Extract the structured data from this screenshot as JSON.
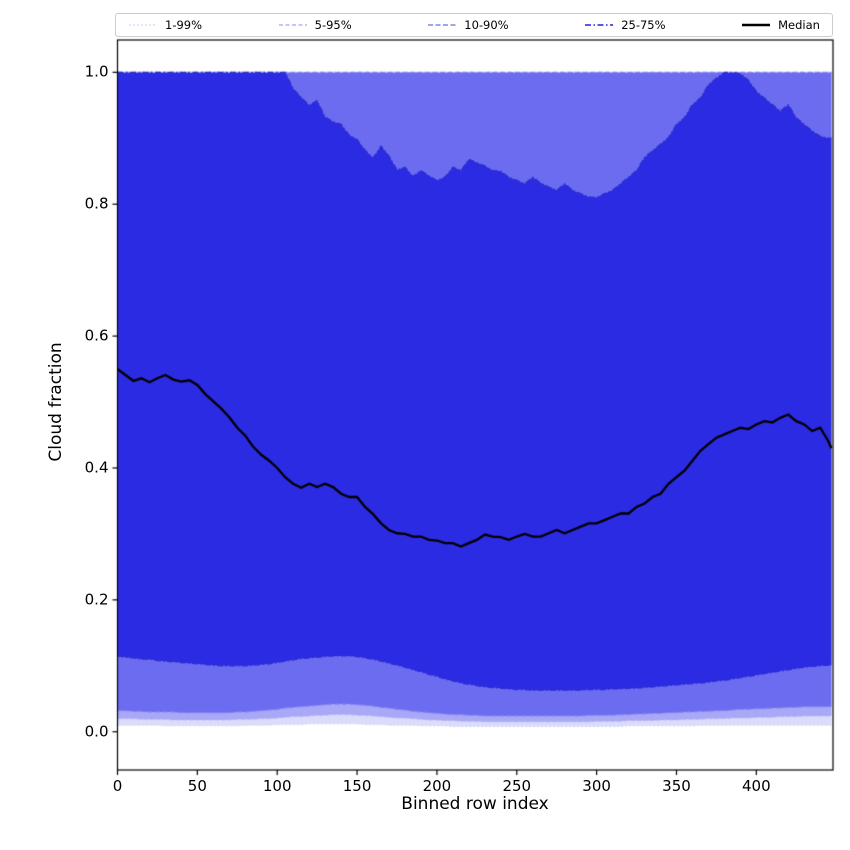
{
  "figure": {
    "background": "#ffffff"
  },
  "chart_data": {
    "type": "area",
    "title": "",
    "xlabel": "Binned row index",
    "ylabel": "Cloud fraction",
    "legend_position": "top",
    "grid": false,
    "xlim": [
      0,
      448
    ],
    "ylim": [
      -0.058,
      1.049
    ],
    "xtick_values": [
      0,
      50,
      100,
      150,
      200,
      250,
      300,
      350,
      400
    ],
    "xtick_labels": [
      "0",
      "50",
      "100",
      "150",
      "200",
      "250",
      "300",
      "350",
      "400"
    ],
    "ytick_values": [
      0.0,
      0.2,
      0.4,
      0.6,
      0.8,
      1.0
    ],
    "ytick_labels": [
      "0.0",
      "0.2",
      "0.4",
      "0.6",
      "0.8",
      "1.0"
    ],
    "x": [
      0,
      5,
      10,
      15,
      20,
      25,
      30,
      35,
      40,
      45,
      50,
      55,
      60,
      65,
      70,
      75,
      80,
      85,
      90,
      95,
      100,
      105,
      110,
      115,
      120,
      125,
      130,
      135,
      140,
      145,
      150,
      155,
      160,
      165,
      170,
      175,
      180,
      185,
      190,
      195,
      200,
      205,
      210,
      215,
      220,
      225,
      230,
      235,
      240,
      245,
      250,
      255,
      260,
      265,
      270,
      275,
      280,
      285,
      290,
      295,
      300,
      305,
      310,
      315,
      320,
      325,
      330,
      335,
      340,
      345,
      350,
      355,
      360,
      365,
      370,
      375,
      380,
      385,
      390,
      395,
      400,
      405,
      410,
      415,
      420,
      425,
      430,
      435,
      440,
      445,
      447
    ],
    "percentiles": {
      "p1": [
        0.01,
        0.01,
        0.01,
        0.01,
        0.01,
        0.01,
        0.009,
        0.009,
        0.009,
        0.009,
        0.009,
        0.009,
        0.009,
        0.009,
        0.009,
        0.009,
        0.01,
        0.01,
        0.01,
        0.01,
        0.011,
        0.011,
        0.011,
        0.011,
        0.012,
        0.012,
        0.012,
        0.012,
        0.012,
        0.012,
        0.012,
        0.011,
        0.011,
        0.011,
        0.01,
        0.01,
        0.01,
        0.01,
        0.009,
        0.009,
        0.009,
        0.009,
        0.008,
        0.008,
        0.008,
        0.008,
        0.008,
        0.008,
        0.008,
        0.008,
        0.008,
        0.008,
        0.008,
        0.008,
        0.008,
        0.008,
        0.008,
        0.008,
        0.008,
        0.008,
        0.008,
        0.008,
        0.008,
        0.008,
        0.009,
        0.009,
        0.009,
        0.009,
        0.009,
        0.009,
        0.009,
        0.009,
        0.009,
        0.01,
        0.01,
        0.01,
        0.01,
        0.01,
        0.01,
        0.01,
        0.01,
        0.01,
        0.01,
        0.01,
        0.01,
        0.01,
        0.01,
        0.01,
        0.01,
        0.01,
        0.01
      ],
      "p5": [
        0.02,
        0.02,
        0.02,
        0.019,
        0.019,
        0.019,
        0.019,
        0.018,
        0.018,
        0.018,
        0.018,
        0.018,
        0.018,
        0.018,
        0.018,
        0.019,
        0.019,
        0.019,
        0.02,
        0.02,
        0.021,
        0.022,
        0.023,
        0.023,
        0.024,
        0.025,
        0.025,
        0.026,
        0.026,
        0.026,
        0.025,
        0.025,
        0.024,
        0.023,
        0.022,
        0.021,
        0.021,
        0.02,
        0.019,
        0.018,
        0.018,
        0.017,
        0.017,
        0.016,
        0.016,
        0.016,
        0.015,
        0.015,
        0.015,
        0.015,
        0.015,
        0.015,
        0.015,
        0.015,
        0.015,
        0.015,
        0.015,
        0.015,
        0.015,
        0.015,
        0.016,
        0.016,
        0.016,
        0.016,
        0.017,
        0.017,
        0.017,
        0.017,
        0.018,
        0.018,
        0.018,
        0.019,
        0.019,
        0.019,
        0.02,
        0.02,
        0.02,
        0.021,
        0.021,
        0.021,
        0.022,
        0.022,
        0.022,
        0.023,
        0.023,
        0.023,
        0.024,
        0.024,
        0.024,
        0.024,
        0.024
      ],
      "p10": [
        0.032,
        0.032,
        0.031,
        0.031,
        0.03,
        0.03,
        0.03,
        0.03,
        0.029,
        0.029,
        0.029,
        0.029,
        0.029,
        0.029,
        0.029,
        0.03,
        0.03,
        0.031,
        0.032,
        0.033,
        0.034,
        0.036,
        0.037,
        0.038,
        0.039,
        0.04,
        0.041,
        0.042,
        0.042,
        0.042,
        0.041,
        0.04,
        0.039,
        0.037,
        0.036,
        0.034,
        0.033,
        0.031,
        0.03,
        0.029,
        0.028,
        0.027,
        0.026,
        0.026,
        0.025,
        0.025,
        0.024,
        0.024,
        0.024,
        0.024,
        0.024,
        0.024,
        0.024,
        0.024,
        0.024,
        0.024,
        0.024,
        0.024,
        0.024,
        0.025,
        0.025,
        0.025,
        0.025,
        0.026,
        0.026,
        0.027,
        0.027,
        0.028,
        0.028,
        0.029,
        0.029,
        0.03,
        0.03,
        0.031,
        0.031,
        0.032,
        0.032,
        0.033,
        0.034,
        0.034,
        0.035,
        0.035,
        0.036,
        0.036,
        0.037,
        0.037,
        0.038,
        0.038,
        0.038,
        0.038,
        0.038
      ],
      "p25": [
        0.115,
        0.113,
        0.112,
        0.11,
        0.11,
        0.108,
        0.107,
        0.106,
        0.105,
        0.104,
        0.103,
        0.102,
        0.101,
        0.1,
        0.1,
        0.1,
        0.1,
        0.101,
        0.102,
        0.103,
        0.105,
        0.107,
        0.109,
        0.111,
        0.112,
        0.113,
        0.114,
        0.115,
        0.115,
        0.115,
        0.114,
        0.112,
        0.11,
        0.107,
        0.104,
        0.101,
        0.098,
        0.094,
        0.091,
        0.087,
        0.084,
        0.08,
        0.077,
        0.074,
        0.072,
        0.07,
        0.068,
        0.067,
        0.066,
        0.065,
        0.064,
        0.064,
        0.063,
        0.063,
        0.063,
        0.063,
        0.063,
        0.063,
        0.063,
        0.064,
        0.064,
        0.064,
        0.065,
        0.065,
        0.066,
        0.066,
        0.067,
        0.068,
        0.069,
        0.07,
        0.071,
        0.072,
        0.073,
        0.074,
        0.075,
        0.077,
        0.078,
        0.08,
        0.082,
        0.084,
        0.086,
        0.088,
        0.09,
        0.092,
        0.094,
        0.096,
        0.098,
        0.099,
        0.1,
        0.101,
        0.101
      ],
      "p50": [
        0.55,
        0.541,
        0.532,
        0.536,
        0.53,
        0.536,
        0.541,
        0.534,
        0.531,
        0.533,
        0.526,
        0.512,
        0.501,
        0.49,
        0.477,
        0.461,
        0.449,
        0.432,
        0.42,
        0.411,
        0.4,
        0.386,
        0.376,
        0.37,
        0.376,
        0.371,
        0.376,
        0.371,
        0.361,
        0.356,
        0.356,
        0.341,
        0.33,
        0.316,
        0.306,
        0.301,
        0.3,
        0.296,
        0.296,
        0.291,
        0.29,
        0.286,
        0.286,
        0.281,
        0.286,
        0.291,
        0.299,
        0.296,
        0.295,
        0.291,
        0.296,
        0.3,
        0.296,
        0.296,
        0.301,
        0.306,
        0.301,
        0.306,
        0.311,
        0.316,
        0.316,
        0.321,
        0.326,
        0.331,
        0.331,
        0.341,
        0.346,
        0.356,
        0.361,
        0.376,
        0.386,
        0.396,
        0.411,
        0.426,
        0.436,
        0.446,
        0.451,
        0.456,
        0.461,
        0.459,
        0.466,
        0.471,
        0.469,
        0.476,
        0.481,
        0.471,
        0.466,
        0.456,
        0.461,
        0.441,
        0.43
      ],
      "p75": [
        1.0,
        1.0,
        1.0,
        1.0,
        1.0,
        1.0,
        1.0,
        1.0,
        1.0,
        1.0,
        1.0,
        1.0,
        1.0,
        1.0,
        1.0,
        1.0,
        1.0,
        1.0,
        1.0,
        1.0,
        1.0,
        1.0,
        0.975,
        0.962,
        0.95,
        0.957,
        0.932,
        0.925,
        0.921,
        0.905,
        0.898,
        0.882,
        0.87,
        0.888,
        0.873,
        0.852,
        0.856,
        0.842,
        0.851,
        0.843,
        0.836,
        0.841,
        0.856,
        0.851,
        0.868,
        0.863,
        0.858,
        0.851,
        0.85,
        0.841,
        0.836,
        0.831,
        0.841,
        0.832,
        0.826,
        0.821,
        0.831,
        0.821,
        0.816,
        0.811,
        0.81,
        0.816,
        0.821,
        0.831,
        0.841,
        0.851,
        0.871,
        0.881,
        0.891,
        0.901,
        0.921,
        0.931,
        0.951,
        0.961,
        0.981,
        0.991,
        1.0,
        1.0,
        0.998,
        0.988,
        0.971,
        0.961,
        0.951,
        0.941,
        0.951,
        0.931,
        0.921,
        0.911,
        0.903,
        0.9,
        0.9
      ],
      "p90": 1.0,
      "p95": 1.0,
      "p99": 1.0
    },
    "bands": [
      {
        "label": "1-99%",
        "lower": "p1",
        "upper": "p99",
        "fill": "#dbdbfb",
        "edge": "#d2d2f8",
        "dash": [
          2,
          2
        ],
        "lw": 1
      },
      {
        "label": "5-95%",
        "lower": "p5",
        "upper": "p95",
        "fill": "#a8a8f6",
        "edge": "#b4b4f5",
        "dash": [
          4,
          2.5
        ],
        "lw": 1
      },
      {
        "label": "10-90%",
        "lower": "p10",
        "upper": "p90",
        "fill": "#6c6cf1",
        "edge": "#8484f0",
        "dash": [
          5,
          2.5
        ],
        "lw": 1.2
      },
      {
        "label": "25-75%",
        "lower": "p25",
        "upper": "p75",
        "fill": "#2b2be3",
        "edge": "#2e2ec8",
        "dash": [
          6,
          2.5,
          1.5,
          2.5
        ],
        "lw": 1.3
      }
    ],
    "median": {
      "label": "Median",
      "color": "#000000",
      "lw": 2.3
    },
    "legend": [
      {
        "label": "1-99%",
        "color": "#d2d2f8",
        "dash": "2,2",
        "lw": 1.2
      },
      {
        "label": "5-95%",
        "color": "#b4b4f5",
        "dash": "4,2.5",
        "lw": 1.4
      },
      {
        "label": "10-90%",
        "color": "#8484f0",
        "dash": "5,2.5",
        "lw": 1.5
      },
      {
        "label": "25-75%",
        "color": "#4444dd",
        "dash": "6,2.5,1.5,2.5",
        "lw": 1.8
      },
      {
        "label": "Median",
        "color": "#000000",
        "dash": "",
        "lw": 2.6
      }
    ]
  }
}
